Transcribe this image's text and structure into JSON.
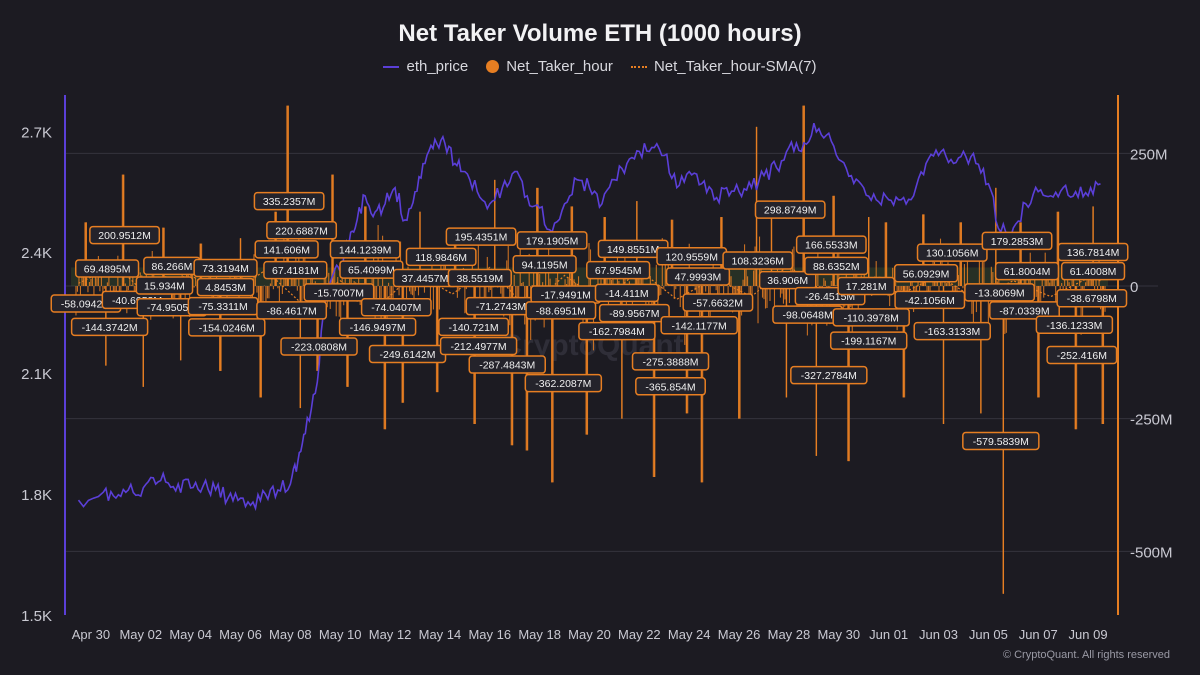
{
  "chart_data": {
    "type": "line",
    "title": "Net Taker Volume ETH (1000 hours)",
    "legend_position": "top-center",
    "grid": true,
    "colors": {
      "background": "#1c1b22",
      "eth_price": "#5b3fd8",
      "net_taker_hour": "#e67e22",
      "sma": "#e67e22",
      "label_border": "#e67e22",
      "label_bg": "#24232b",
      "grid": "#34333d",
      "axis_text": "#c9c9d2"
    },
    "series": [
      {
        "name": "eth_price",
        "axis": "left",
        "style": "line"
      },
      {
        "name": "Net_Taker_hour",
        "axis": "right",
        "style": "bar"
      },
      {
        "name": "Net_Taker_hour-SMA(7)",
        "axis": "right",
        "style": "dotted-line"
      }
    ],
    "y_left": {
      "ticks": [
        "1.5K",
        "1.8K",
        "2.1K",
        "2.4K",
        "2.7K"
      ],
      "ylim": [
        1500,
        2790
      ]
    },
    "y_right": {
      "ticks": [
        "250M",
        "0",
        "-250M",
        "-500M"
      ],
      "ylim": [
        -620,
        360
      ]
    },
    "x_ticks": [
      "Apr 30",
      "May 02",
      "May 04",
      "May 06",
      "May 08",
      "May 10",
      "May 12",
      "May 14",
      "May 16",
      "May 18",
      "May 20",
      "May 22",
      "May 24",
      "May 26",
      "May 28",
      "May 30",
      "Jun 01",
      "Jun 03",
      "Jun 05",
      "Jun 07",
      "Jun 09"
    ],
    "x_range_days": [
      -1.0,
      41.2
    ],
    "eth_price_points": [
      [
        -0.5,
        1785
      ],
      [
        0.5,
        1805
      ],
      [
        1.0,
        1790
      ],
      [
        1.5,
        1810
      ],
      [
        2.0,
        1795
      ],
      [
        2.5,
        1840
      ],
      [
        3.0,
        1830
      ],
      [
        3.5,
        1825
      ],
      [
        4.0,
        1815
      ],
      [
        4.5,
        1820
      ],
      [
        5.0,
        1810
      ],
      [
        5.5,
        1790
      ],
      [
        6.0,
        1790
      ],
      [
        6.5,
        1780
      ],
      [
        7.0,
        1800
      ],
      [
        7.5,
        1810
      ],
      [
        8.0,
        1825
      ],
      [
        8.3,
        1880
      ],
      [
        8.6,
        1950
      ],
      [
        9.0,
        2050
      ],
      [
        9.4,
        2280
      ],
      [
        9.8,
        2360
      ],
      [
        10.1,
        2360
      ],
      [
        10.3,
        2420
      ],
      [
        10.6,
        2460
      ],
      [
        11.0,
        2540
      ],
      [
        11.4,
        2500
      ],
      [
        11.8,
        2520
      ],
      [
        12.2,
        2560
      ],
      [
        12.6,
        2480
      ],
      [
        13.0,
        2550
      ],
      [
        13.4,
        2620
      ],
      [
        13.8,
        2680
      ],
      [
        14.2,
        2670
      ],
      [
        14.6,
        2620
      ],
      [
        15.0,
        2600
      ],
      [
        15.5,
        2550
      ],
      [
        16.0,
        2520
      ],
      [
        16.5,
        2560
      ],
      [
        17.0,
        2600
      ],
      [
        17.5,
        2540
      ],
      [
        18.0,
        2510
      ],
      [
        18.5,
        2450
      ],
      [
        19.0,
        2520
      ],
      [
        19.5,
        2580
      ],
      [
        20.0,
        2560
      ],
      [
        20.5,
        2520
      ],
      [
        21.0,
        2580
      ],
      [
        21.5,
        2620
      ],
      [
        22.0,
        2650
      ],
      [
        22.5,
        2660
      ],
      [
        23.0,
        2640
      ],
      [
        23.5,
        2560
      ],
      [
        24.0,
        2600
      ],
      [
        24.5,
        2570
      ],
      [
        25.0,
        2530
      ],
      [
        25.5,
        2560
      ],
      [
        26.0,
        2550
      ],
      [
        26.5,
        2560
      ],
      [
        27.0,
        2590
      ],
      [
        27.5,
        2610
      ],
      [
        28.0,
        2660
      ],
      [
        28.5,
        2650
      ],
      [
        29.0,
        2720
      ],
      [
        29.5,
        2690
      ],
      [
        30.0,
        2630
      ],
      [
        30.5,
        2590
      ],
      [
        31.0,
        2560
      ],
      [
        31.5,
        2530
      ],
      [
        32.0,
        2530
      ],
      [
        32.5,
        2530
      ],
      [
        33.0,
        2540
      ],
      [
        33.5,
        2620
      ],
      [
        34.0,
        2640
      ],
      [
        34.5,
        2630
      ],
      [
        35.0,
        2650
      ],
      [
        35.5,
        2620
      ],
      [
        36.0,
        2570
      ],
      [
        36.5,
        2450
      ],
      [
        37.0,
        2460
      ],
      [
        37.5,
        2520
      ],
      [
        38.0,
        2550
      ],
      [
        38.5,
        2540
      ],
      [
        39.0,
        2560
      ],
      [
        39.5,
        2550
      ],
      [
        40.0,
        2540
      ],
      [
        40.5,
        2570
      ]
    ],
    "sma_points": [
      [
        -0.5,
        5
      ],
      [
        1.0,
        40
      ],
      [
        2.5,
        -30
      ],
      [
        4.0,
        20
      ],
      [
        5.5,
        -20
      ],
      [
        7.0,
        30
      ],
      [
        8.5,
        -35
      ],
      [
        10.0,
        10
      ],
      [
        11.5,
        -40
      ],
      [
        13.0,
        25
      ],
      [
        14.5,
        -15
      ],
      [
        16.0,
        35
      ],
      [
        17.5,
        -45
      ],
      [
        19.0,
        20
      ],
      [
        20.5,
        -30
      ],
      [
        22.0,
        30
      ],
      [
        23.5,
        -25
      ],
      [
        25.0,
        15
      ],
      [
        26.5,
        -20
      ],
      [
        28.0,
        40
      ],
      [
        29.5,
        -30
      ],
      [
        31.0,
        15
      ],
      [
        32.5,
        -15
      ],
      [
        34.0,
        20
      ],
      [
        35.5,
        -25
      ],
      [
        37.0,
        10
      ],
      [
        38.5,
        -20
      ],
      [
        40.0,
        15
      ],
      [
        40.5,
        10
      ]
    ],
    "bar_extremes": [
      [
        -0.2,
        120
      ],
      [
        0.6,
        -150
      ],
      [
        1.3,
        210
      ],
      [
        2.1,
        -190
      ],
      [
        2.9,
        110
      ],
      [
        3.6,
        -140
      ],
      [
        4.4,
        80
      ],
      [
        5.2,
        -160
      ],
      [
        6.0,
        90
      ],
      [
        6.8,
        -210
      ],
      [
        7.4,
        140
      ],
      [
        7.9,
        340
      ],
      [
        8.4,
        -230
      ],
      [
        9.1,
        -160
      ],
      [
        9.7,
        210
      ],
      [
        10.3,
        -190
      ],
      [
        11.0,
        150
      ],
      [
        11.8,
        -270
      ],
      [
        12.5,
        -220
      ],
      [
        13.2,
        140
      ],
      [
        13.9,
        -200
      ],
      [
        14.6,
        110
      ],
      [
        15.4,
        -260
      ],
      [
        16.2,
        200
      ],
      [
        16.9,
        -300
      ],
      [
        17.5,
        -310
      ],
      [
        17.9,
        185
      ],
      [
        18.5,
        -370
      ],
      [
        19.3,
        150
      ],
      [
        19.9,
        -280
      ],
      [
        20.6,
        130
      ],
      [
        21.3,
        -250
      ],
      [
        21.9,
        160
      ],
      [
        22.6,
        -360
      ],
      [
        23.3,
        125
      ],
      [
        23.9,
        -240
      ],
      [
        24.5,
        -370
      ],
      [
        25.3,
        130
      ],
      [
        26.0,
        -250
      ],
      [
        26.7,
        300
      ],
      [
        27.3,
        130
      ],
      [
        27.9,
        -210
      ],
      [
        28.6,
        340
      ],
      [
        29.1,
        -320
      ],
      [
        29.8,
        170
      ],
      [
        30.4,
        -330
      ],
      [
        31.2,
        130
      ],
      [
        31.9,
        120
      ],
      [
        32.6,
        -210
      ],
      [
        33.4,
        135
      ],
      [
        34.2,
        -260
      ],
      [
        34.9,
        120
      ],
      [
        35.7,
        -240
      ],
      [
        36.3,
        185
      ],
      [
        36.6,
        -580
      ],
      [
        37.3,
        120
      ],
      [
        38.0,
        -210
      ],
      [
        38.8,
        140
      ],
      [
        39.5,
        -270
      ],
      [
        40.2,
        150
      ],
      [
        40.6,
        -260
      ]
    ],
    "annotations": [
      {
        "text": "200.9512M",
        "d": 1.35,
        "v": 96
      },
      {
        "text": "69.4895M",
        "d": 0.65,
        "v": 33
      },
      {
        "text": "-58.0942M",
        "d": -0.2,
        "v": -33
      },
      {
        "text": "-144.3742M",
        "d": 0.75,
        "v": -77
      },
      {
        "text": "-40.6953M",
        "d": 1.85,
        "v": -26
      },
      {
        "text": "86.266M",
        "d": 3.25,
        "v": 38
      },
      {
        "text": "15.934M",
        "d": 2.95,
        "v": 1
      },
      {
        "text": "-74.9505M",
        "d": 3.25,
        "v": -40
      },
      {
        "text": "73.3194M",
        "d": 5.4,
        "v": 34
      },
      {
        "text": "4.8453M",
        "d": 5.4,
        "v": -2
      },
      {
        "text": "-75.3311M",
        "d": 5.3,
        "v": -38
      },
      {
        "text": "-154.0246M",
        "d": 5.45,
        "v": -78
      },
      {
        "text": "335.2357M",
        "d": 7.95,
        "v": 160
      },
      {
        "text": "220.6887M",
        "d": 8.45,
        "v": 105
      },
      {
        "text": "141.606M",
        "d": 7.85,
        "v": 69
      },
      {
        "text": "67.4181M",
        "d": 8.2,
        "v": 30
      },
      {
        "text": "-86.4617M",
        "d": 8.05,
        "v": -46
      },
      {
        "text": "-15.7007M",
        "d": 9.95,
        "v": -12
      },
      {
        "text": "-223.0808M",
        "d": 9.15,
        "v": -114
      },
      {
        "text": "144.1239M",
        "d": 11.0,
        "v": 69
      },
      {
        "text": "65.4099M",
        "d": 11.25,
        "v": 31
      },
      {
        "text": "-74.0407M",
        "d": 12.25,
        "v": -40
      },
      {
        "text": "-146.9497M",
        "d": 11.5,
        "v": -77
      },
      {
        "text": "-249.6142M",
        "d": 12.7,
        "v": -128
      },
      {
        "text": "37.4457M",
        "d": 13.4,
        "v": 15
      },
      {
        "text": "118.9846M",
        "d": 14.05,
        "v": 55
      },
      {
        "text": "195.4351M",
        "d": 15.65,
        "v": 93
      },
      {
        "text": "38.5519M",
        "d": 15.6,
        "v": 15
      },
      {
        "text": "-71.2743M",
        "d": 16.45,
        "v": -38
      },
      {
        "text": "-140.721M",
        "d": 15.35,
        "v": -77
      },
      {
        "text": "-212.4977M",
        "d": 15.55,
        "v": -113
      },
      {
        "text": "-287.4843M",
        "d": 16.7,
        "v": -148
      },
      {
        "text": "179.1905M",
        "d": 18.5,
        "v": 86
      },
      {
        "text": "94.1195M",
        "d": 18.2,
        "v": 41
      },
      {
        "text": "-17.9491M",
        "d": 19.05,
        "v": -16
      },
      {
        "text": "-88.6951M",
        "d": 18.85,
        "v": -46
      },
      {
        "text": "-362.2087M",
        "d": 18.95,
        "v": -183
      },
      {
        "text": "149.8551M",
        "d": 21.75,
        "v": 70
      },
      {
        "text": "67.9545M",
        "d": 21.15,
        "v": 30
      },
      {
        "text": "-14.411M",
        "d": 21.5,
        "v": -13
      },
      {
        "text": "-89.9567M",
        "d": 21.8,
        "v": -51
      },
      {
        "text": "-162.7984M",
        "d": 21.1,
        "v": -85
      },
      {
        "text": "120.9559M",
        "d": 24.1,
        "v": 56
      },
      {
        "text": "47.9993M",
        "d": 24.35,
        "v": 18
      },
      {
        "text": "-57.6632M",
        "d": 25.15,
        "v": -31
      },
      {
        "text": "-142.1177M",
        "d": 24.4,
        "v": -74
      },
      {
        "text": "-275.3888M",
        "d": 23.25,
        "v": -142
      },
      {
        "text": "-365.854M",
        "d": 23.25,
        "v": -189
      },
      {
        "text": "298.8749M",
        "d": 28.05,
        "v": 144
      },
      {
        "text": "108.3236M",
        "d": 26.75,
        "v": 48
      },
      {
        "text": "36.906M",
        "d": 27.95,
        "v": 11
      },
      {
        "text": "-26.4515M",
        "d": 29.65,
        "v": -19
      },
      {
        "text": "-98.0648M",
        "d": 28.75,
        "v": -54
      },
      {
        "text": "166.5533M",
        "d": 29.7,
        "v": 78
      },
      {
        "text": "88.6352M",
        "d": 29.9,
        "v": 38
      },
      {
        "text": "17.281M",
        "d": 31.1,
        "v": 0
      },
      {
        "text": "-110.3978M",
        "d": 31.3,
        "v": -59
      },
      {
        "text": "-199.1167M",
        "d": 31.2,
        "v": -103
      },
      {
        "text": "-327.2784M",
        "d": 29.6,
        "v": -168
      },
      {
        "text": "130.1056M",
        "d": 34.55,
        "v": 63
      },
      {
        "text": "56.0929M",
        "d": 33.5,
        "v": 24
      },
      {
        "text": "-42.1056M",
        "d": 33.65,
        "v": -26
      },
      {
        "text": "-163.3133M",
        "d": 34.55,
        "v": -85
      },
      {
        "text": "179.2853M",
        "d": 37.15,
        "v": 85
      },
      {
        "text": "61.8004M",
        "d": 37.55,
        "v": 28
      },
      {
        "text": "-13.8069M",
        "d": 36.45,
        "v": -12
      },
      {
        "text": "-87.0339M",
        "d": 37.45,
        "v": -46
      },
      {
        "text": "-579.5839M",
        "d": 36.5,
        "v": -292
      },
      {
        "text": "136.7814M",
        "d": 40.2,
        "v": 64
      },
      {
        "text": "61.4008M",
        "d": 40.2,
        "v": 28
      },
      {
        "text": "-38.6798M",
        "d": 40.15,
        "v": -23
      },
      {
        "text": "-136.1233M",
        "d": 39.45,
        "v": -73
      },
      {
        "text": "-252.416M",
        "d": 39.75,
        "v": -130
      }
    ],
    "watermark": "CryptoQuant"
  },
  "copyright": "© CryptoQuant. All rights reserved"
}
